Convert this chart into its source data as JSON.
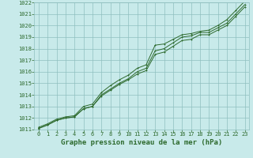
{
  "title": "Graphe pression niveau de la mer (hPa)",
  "x_values": [
    0,
    1,
    2,
    3,
    4,
    5,
    6,
    7,
    8,
    9,
    10,
    11,
    12,
    13,
    14,
    15,
    16,
    17,
    18,
    19,
    20,
    21,
    22,
    23
  ],
  "series1": [
    1011.2,
    1011.5,
    1011.9,
    1012.1,
    1012.2,
    1013.0,
    1013.2,
    1014.2,
    1014.8,
    1015.3,
    1015.7,
    1016.3,
    1016.6,
    1018.3,
    1018.4,
    1018.8,
    1019.2,
    1019.3,
    1019.5,
    1019.6,
    1020.0,
    1020.5,
    1021.3,
    1022.1
  ],
  "series2": [
    1011.1,
    1011.4,
    1011.8,
    1012.0,
    1012.1,
    1012.8,
    1013.0,
    1014.0,
    1014.5,
    1015.0,
    1015.4,
    1016.0,
    1016.3,
    1017.8,
    1018.0,
    1018.5,
    1019.0,
    1019.1,
    1019.4,
    1019.4,
    1019.8,
    1020.2,
    1021.0,
    1021.8
  ],
  "series3": [
    1011.1,
    1011.4,
    1011.8,
    1012.0,
    1012.1,
    1012.8,
    1013.0,
    1013.9,
    1014.4,
    1014.9,
    1015.3,
    1015.8,
    1016.1,
    1017.5,
    1017.7,
    1018.2,
    1018.7,
    1018.8,
    1019.2,
    1019.2,
    1019.6,
    1020.0,
    1020.8,
    1021.6
  ],
  "xlim": [
    -0.5,
    23.5
  ],
  "ylim": [
    1011,
    1022
  ],
  "yticks": [
    1011,
    1012,
    1013,
    1014,
    1015,
    1016,
    1017,
    1018,
    1019,
    1020,
    1021,
    1022
  ],
  "xticks": [
    0,
    1,
    2,
    3,
    4,
    5,
    6,
    7,
    8,
    9,
    10,
    11,
    12,
    13,
    14,
    15,
    16,
    17,
    18,
    19,
    20,
    21,
    22,
    23
  ],
  "line_color": "#2d6a2d",
  "bg_color": "#c8eaea",
  "grid_color": "#8fbfbf",
  "title_color": "#2d6a2d",
  "axis_color": "#2d6a2d",
  "title_fontsize": 6.5,
  "tick_fontsize": 5.0
}
